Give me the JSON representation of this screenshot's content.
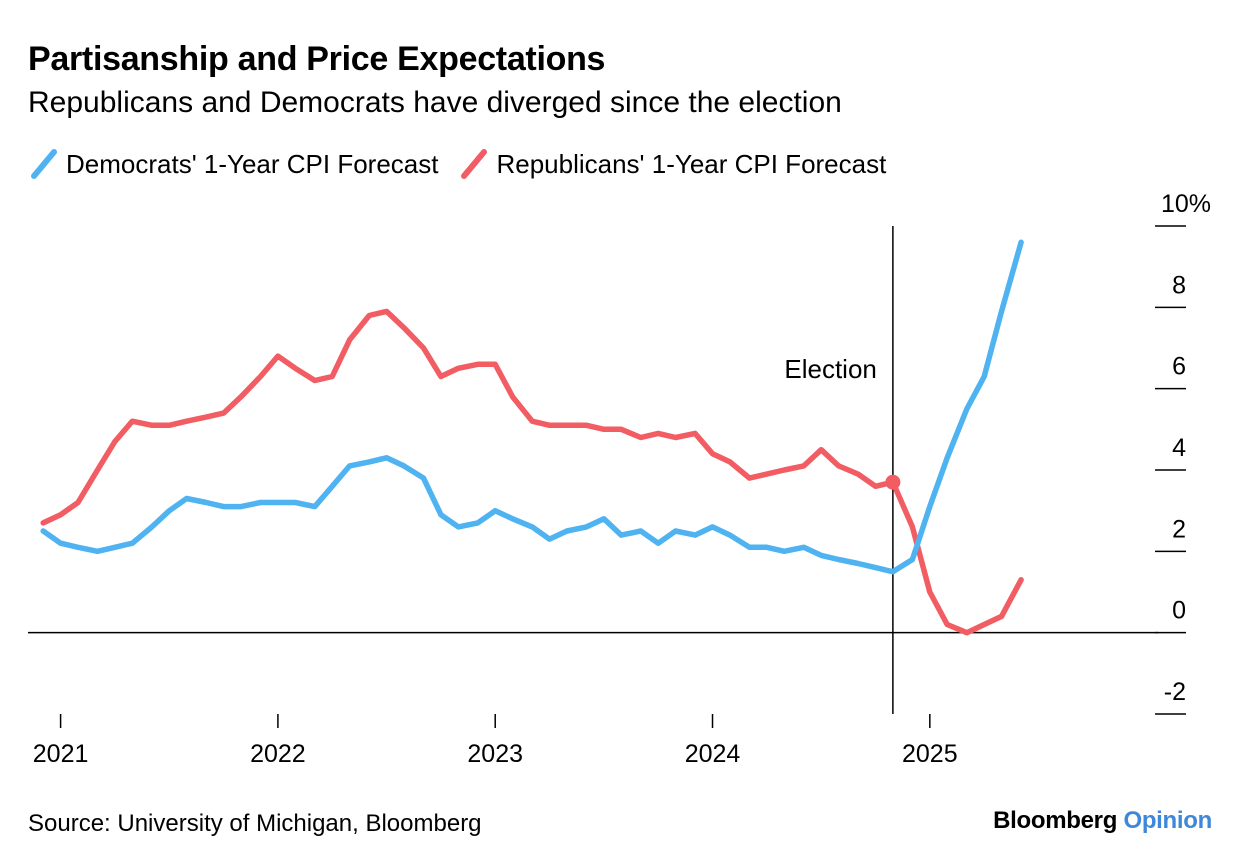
{
  "title": "Partisanship and Price Expectations",
  "subtitle": "Republicans and Democrats have diverged since the election",
  "source": "Source: University of Michigan, Bloomberg",
  "brand": {
    "primary": "Bloomberg",
    "secondary": "Opinion",
    "secondary_color": "#3e87d9"
  },
  "chart_data": {
    "type": "line",
    "title": "Partisanship and Price Expectations",
    "subtitle": "Republicans and Democrats have diverged since the election",
    "xlim": [
      2020.85,
      2026.05
    ],
    "ylim": [
      -2,
      10
    ],
    "x_ticks": [
      2021,
      2022,
      2023,
      2024,
      2025
    ],
    "x_tick_labels": [
      "2021",
      "2022",
      "2023",
      "2024",
      "2025"
    ],
    "y_ticks": [
      -2,
      0,
      2,
      4,
      6,
      8,
      10
    ],
    "y_tick_labels": [
      "-2",
      "0",
      "2",
      "4",
      "6",
      "8",
      "10%"
    ],
    "y_axis_side": "right",
    "grid": false,
    "zero_line": true,
    "legend_position": "top-left",
    "annotations": [
      {
        "label": "Election",
        "x": 2024.83,
        "type": "vertical-line"
      }
    ],
    "series": [
      {
        "name": "Democrats' 1-Year CPI Forecast",
        "color": "#4eb3f0",
        "x": [
          2020.92,
          2021.0,
          2021.08,
          2021.17,
          2021.25,
          2021.33,
          2021.42,
          2021.5,
          2021.58,
          2021.67,
          2021.75,
          2021.83,
          2021.92,
          2022.0,
          2022.08,
          2022.17,
          2022.25,
          2022.33,
          2022.42,
          2022.5,
          2022.58,
          2022.67,
          2022.75,
          2022.83,
          2022.92,
          2023.0,
          2023.08,
          2023.17,
          2023.25,
          2023.33,
          2023.42,
          2023.5,
          2023.58,
          2023.67,
          2023.75,
          2023.83,
          2023.92,
          2024.0,
          2024.08,
          2024.17,
          2024.25,
          2024.33,
          2024.42,
          2024.5,
          2024.58,
          2024.67,
          2024.75,
          2024.83,
          2024.92,
          2025.0,
          2025.08,
          2025.17,
          2025.25,
          2025.33,
          2025.42
        ],
        "values": [
          2.5,
          2.2,
          2.1,
          2.0,
          2.1,
          2.2,
          2.6,
          3.0,
          3.3,
          3.2,
          3.1,
          3.1,
          3.2,
          3.2,
          3.2,
          3.1,
          3.6,
          4.1,
          4.2,
          4.3,
          4.1,
          3.8,
          2.9,
          2.6,
          2.7,
          3.0,
          2.8,
          2.6,
          2.3,
          2.5,
          2.6,
          2.8,
          2.4,
          2.5,
          2.2,
          2.5,
          2.4,
          2.6,
          2.4,
          2.1,
          2.1,
          2.0,
          2.1,
          1.9,
          1.8,
          1.7,
          1.6,
          1.5,
          1.8,
          3.1,
          4.3,
          5.5,
          6.3,
          7.9,
          9.6
        ]
      },
      {
        "name": "Republicans' 1-Year CPI Forecast",
        "color": "#f25c63",
        "x": [
          2020.92,
          2021.0,
          2021.08,
          2021.17,
          2021.25,
          2021.33,
          2021.42,
          2021.5,
          2021.58,
          2021.67,
          2021.75,
          2021.83,
          2021.92,
          2022.0,
          2022.08,
          2022.17,
          2022.25,
          2022.33,
          2022.42,
          2022.5,
          2022.58,
          2022.67,
          2022.75,
          2022.83,
          2022.92,
          2023.0,
          2023.08,
          2023.17,
          2023.25,
          2023.33,
          2023.42,
          2023.5,
          2023.58,
          2023.67,
          2023.75,
          2023.83,
          2023.92,
          2024.0,
          2024.08,
          2024.17,
          2024.25,
          2024.33,
          2024.42,
          2024.5,
          2024.58,
          2024.67,
          2024.75,
          2024.83,
          2024.92,
          2025.0,
          2025.08,
          2025.17,
          2025.25,
          2025.33,
          2025.42
        ],
        "values": [
          2.7,
          2.9,
          3.2,
          4.0,
          4.7,
          5.2,
          5.1,
          5.1,
          5.2,
          5.3,
          5.4,
          5.8,
          6.3,
          6.8,
          6.5,
          6.2,
          6.3,
          7.2,
          7.8,
          7.9,
          7.5,
          7.0,
          6.3,
          6.5,
          6.6,
          6.6,
          5.8,
          5.2,
          5.1,
          5.1,
          5.1,
          5.0,
          5.0,
          4.8,
          4.9,
          4.8,
          4.9,
          4.4,
          4.2,
          3.8,
          3.9,
          4.0,
          4.1,
          4.5,
          4.1,
          3.9,
          3.6,
          3.7,
          2.6,
          1.0,
          0.2,
          0.0,
          0.2,
          0.4,
          1.3
        ],
        "markers": [
          {
            "x": 2024.83,
            "value": 3.7
          }
        ]
      }
    ]
  }
}
